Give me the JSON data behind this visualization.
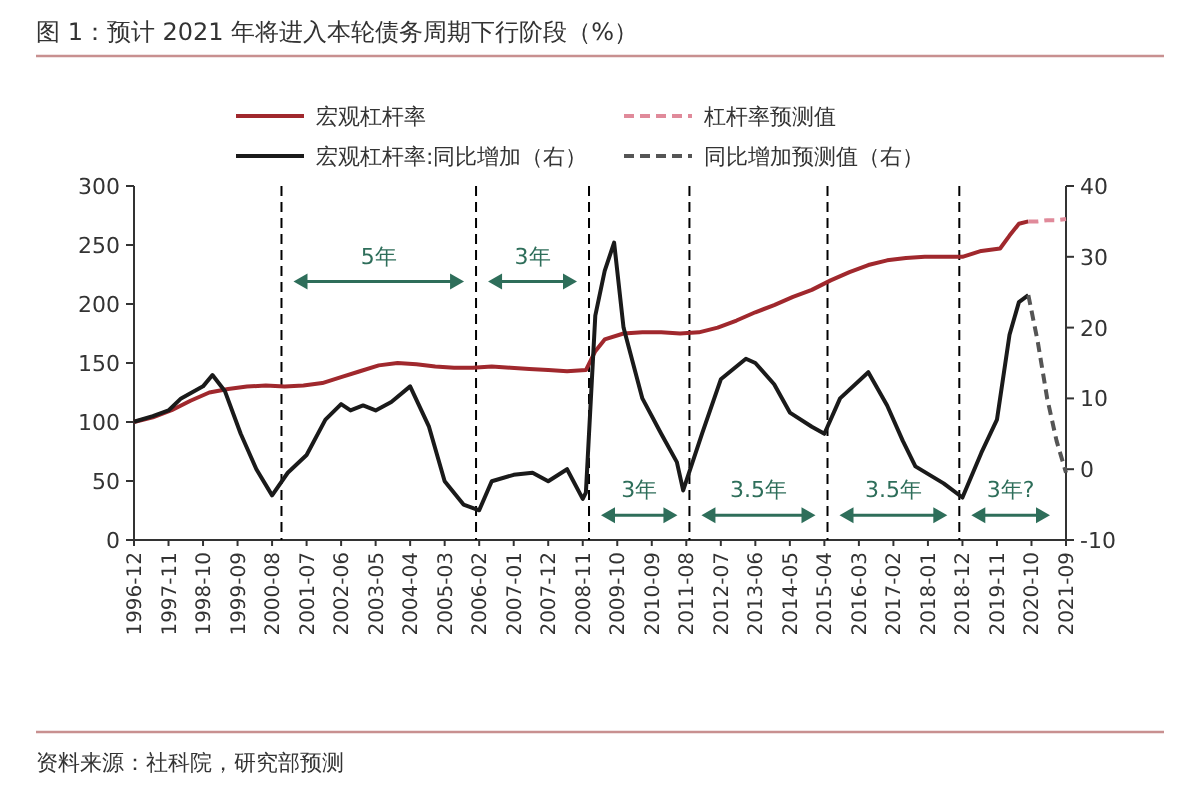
{
  "chart_data": {
    "type": "line",
    "title": "图 1：预计 2021 年将进入本轮债务周期下行阶段（%）",
    "xlim": [
      "1996-12",
      "2021-09"
    ],
    "xticks": [
      "1996-12",
      "1997-11",
      "1998-10",
      "1999-09",
      "2000-08",
      "2001-07",
      "2002-06",
      "2003-05",
      "2004-04",
      "2005-03",
      "2006-02",
      "2007-01",
      "2007-12",
      "2008-11",
      "2009-10",
      "2010-09",
      "2011-08",
      "2012-07",
      "2013-06",
      "2014-05",
      "2015-04",
      "2016-03",
      "2017-02",
      "2018-01",
      "2018-12",
      "2019-11",
      "2020-10",
      "2021-09"
    ],
    "ylim": [
      0,
      300
    ],
    "yticks": [
      0,
      50,
      100,
      150,
      200,
      250,
      300
    ],
    "y2lim": [
      -10,
      40
    ],
    "y2ticks": [
      -10,
      0,
      10,
      20,
      30,
      40
    ],
    "legend": "top",
    "grid": false,
    "series": [
      {
        "name": "宏观杠杆率",
        "color": "#a0282d",
        "line_style": "solid",
        "x": [
          "1996-12",
          "1997-06",
          "1997-12",
          "1998-06",
          "1998-12",
          "1999-06",
          "1999-12",
          "2000-06",
          "2000-12",
          "2001-06",
          "2001-12",
          "2002-06",
          "2002-12",
          "2003-06",
          "2003-12",
          "2004-06",
          "2004-12",
          "2005-06",
          "2005-12",
          "2006-06",
          "2006-12",
          "2007-06",
          "2007-12",
          "2008-06",
          "2008-12",
          "2009-03",
          "2009-06",
          "2009-12",
          "2010-06",
          "2010-12",
          "2011-06",
          "2011-12",
          "2012-06",
          "2012-12",
          "2013-06",
          "2013-12",
          "2014-06",
          "2014-12",
          "2015-06",
          "2015-12",
          "2016-06",
          "2016-12",
          "2017-06",
          "2017-12",
          "2018-06",
          "2018-12",
          "2019-06",
          "2019-12",
          "2020-03",
          "2020-06",
          "2020-09"
        ],
        "values": [
          100,
          104,
          110,
          118,
          125,
          128,
          130,
          131,
          130,
          131,
          133,
          138,
          143,
          148,
          150,
          149,
          147,
          146,
          146,
          147,
          146,
          145,
          144,
          143,
          144,
          160,
          170,
          175,
          176,
          176,
          175,
          176,
          180,
          186,
          193,
          199,
          206,
          212,
          220,
          227,
          233,
          237,
          239,
          240,
          240,
          240,
          245,
          247,
          258,
          268,
          270
        ]
      },
      {
        "name": "杠杆率预测值",
        "color": "#e08a9a",
        "line_style": "dashed",
        "x": [
          "2020-09",
          "2020-12",
          "2021-03",
          "2021-06",
          "2021-09"
        ],
        "values": [
          270,
          270,
          271,
          271,
          272
        ]
      },
      {
        "name": "宏观杠杆率:同比增加（右）",
        "color": "#1a1a1a",
        "line_style": "solid",
        "axis": "y2",
        "x": [
          "1996-12",
          "1997-06",
          "1997-11",
          "1998-03",
          "1998-10",
          "1999-01",
          "1999-05",
          "1999-10",
          "2000-03",
          "2000-08",
          "2001-01",
          "2001-07",
          "2002-01",
          "2002-06",
          "2002-09",
          "2003-01",
          "2003-05",
          "2003-10",
          "2004-04",
          "2004-10",
          "2005-03",
          "2005-09",
          "2006-02",
          "2006-06",
          "2007-01",
          "2007-07",
          "2007-12",
          "2008-06",
          "2008-11",
          "2008-12",
          "2009-03",
          "2009-06",
          "2009-09",
          "2009-12",
          "2010-06",
          "2010-12",
          "2011-05",
          "2011-07",
          "2012-01",
          "2012-07",
          "2013-03",
          "2013-06",
          "2013-12",
          "2014-05",
          "2014-12",
          "2015-04",
          "2015-09",
          "2016-06",
          "2016-12",
          "2017-05",
          "2017-09",
          "2018-06",
          "2018-12",
          "2019-06",
          "2019-11",
          "2020-03",
          "2020-06",
          "2020-09"
        ],
        "values": [
          6.7,
          7.5,
          8.3,
          10,
          11.7,
          13.3,
          11,
          5,
          0,
          -3.7,
          -0.5,
          2,
          7,
          9.2,
          8.3,
          9,
          8.3,
          9.5,
          11.7,
          6,
          -1.7,
          -5,
          -5.8,
          -1.7,
          -0.8,
          -0.5,
          -1.7,
          0,
          -4.2,
          -3.3,
          21.7,
          28,
          32,
          20,
          10,
          5,
          1,
          -3,
          5,
          12.7,
          15.6,
          15,
          12,
          8,
          6,
          5,
          10,
          13.7,
          9,
          4,
          0.4,
          -2,
          -4,
          2.3,
          7,
          19,
          23.6,
          24.6
        ]
      },
      {
        "name": "同比增加预测值（右）",
        "color": "#555555",
        "line_style": "dashed",
        "axis": "y2",
        "x": [
          "2020-09",
          "2020-12",
          "2021-03",
          "2021-06",
          "2021-09"
        ],
        "values": [
          24.6,
          18,
          10,
          4,
          -0.5
        ]
      }
    ],
    "ref_lines": [
      {
        "axis": "x",
        "value": "2000-11",
        "color": "#000000",
        "line_style": "dashed"
      },
      {
        "axis": "x",
        "value": "2006-01",
        "color": "#000000",
        "line_style": "dashed"
      },
      {
        "axis": "x",
        "value": "2009-01",
        "color": "#000000",
        "line_style": "dashed"
      },
      {
        "axis": "x",
        "value": "2011-09",
        "color": "#000000",
        "line_style": "dashed"
      },
      {
        "axis": "x",
        "value": "2015-05",
        "color": "#000000",
        "line_style": "dashed"
      },
      {
        "axis": "x",
        "value": "2018-11",
        "color": "#000000",
        "line_style": "dashed"
      }
    ],
    "annotations": [
      "5年",
      "3年",
      "3年",
      "3.5年",
      "3.5年",
      "3年?",
      "资料来源：社科院，研究部预测"
    ]
  }
}
